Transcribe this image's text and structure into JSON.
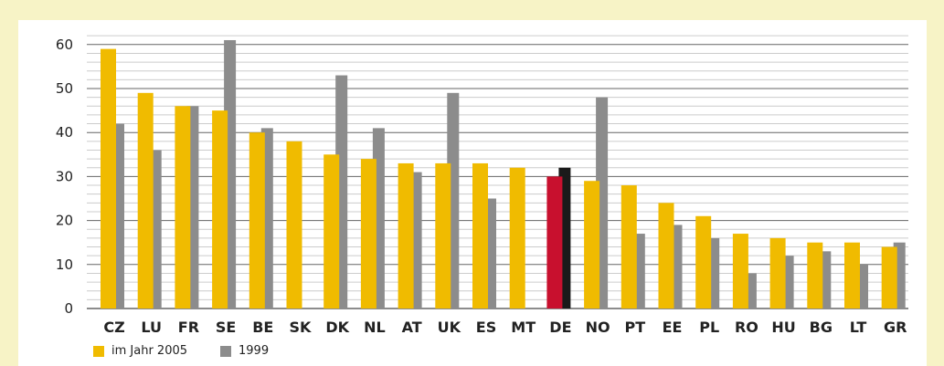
{
  "colors": {
    "series_2005": "#f0bb00",
    "series_1999": "#8c8c8c",
    "highlight_2005": "#c8102e",
    "highlight_1999": "#1a1a1a",
    "grid_major": "#666666",
    "grid_minor": "#cccccc"
  },
  "chart_data": {
    "type": "bar",
    "categories": [
      "CZ",
      "LU",
      "FR",
      "SE",
      "BE",
      "SK",
      "DK",
      "NL",
      "AT",
      "UK",
      "ES",
      "MT",
      "DE",
      "NO",
      "PT",
      "EE",
      "PL",
      "RO",
      "HU",
      "BG",
      "LT",
      "GR"
    ],
    "series": [
      {
        "name": "im Jahr 2005",
        "values": [
          59,
          49,
          46,
          45,
          40,
          38,
          35,
          34,
          33,
          33,
          33,
          32,
          30,
          29,
          28,
          24,
          21,
          17,
          16,
          15,
          15,
          14
        ]
      },
      {
        "name": "1999",
        "values": [
          42,
          36,
          46,
          61,
          41,
          null,
          53,
          41,
          31,
          49,
          25,
          null,
          32,
          48,
          17,
          19,
          16,
          8,
          12,
          13,
          10,
          15
        ]
      }
    ],
    "highlight_category": "DE",
    "yticks": [
      0,
      10,
      20,
      30,
      40,
      50,
      60
    ],
    "ylim": [
      0,
      63
    ],
    "grid": true,
    "legend_position": "bottom-left"
  },
  "legend": {
    "item_2005": "im Jahr 2005",
    "item_1999": "1999"
  }
}
